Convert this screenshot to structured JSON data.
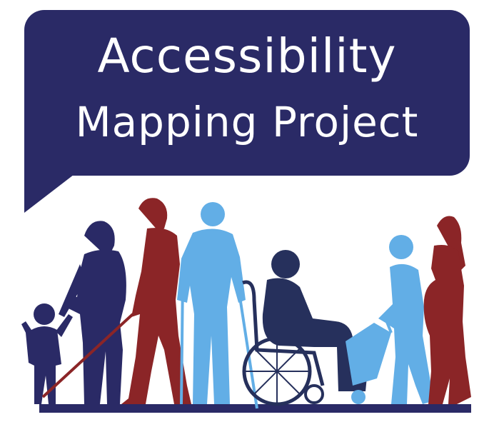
{
  "logo": {
    "title_line1": "Accessibility",
    "title_line2": "Mapping Project"
  },
  "colors": {
    "navy": "#2a2a66",
    "red": "#8b2527",
    "light_blue": "#62aee6",
    "dark_navy": "#26305c",
    "white": "#ffffff"
  },
  "figures": [
    {
      "icon": "child-silhouette-icon",
      "color": "navy"
    },
    {
      "icon": "woman-holding-hand-silhouette-icon",
      "color": "navy"
    },
    {
      "icon": "man-with-white-cane-silhouette-icon",
      "color": "red"
    },
    {
      "icon": "man-with-crutches-silhouette-icon",
      "color": "light_blue"
    },
    {
      "icon": "wheelchair-user-silhouette-icon",
      "color": "dark_navy"
    },
    {
      "icon": "shopping-trolley-icon",
      "color": "light_blue"
    },
    {
      "icon": "woman-with-trolley-silhouette-icon",
      "color": "light_blue"
    },
    {
      "icon": "pregnant-woman-silhouette-icon",
      "color": "red"
    }
  ]
}
